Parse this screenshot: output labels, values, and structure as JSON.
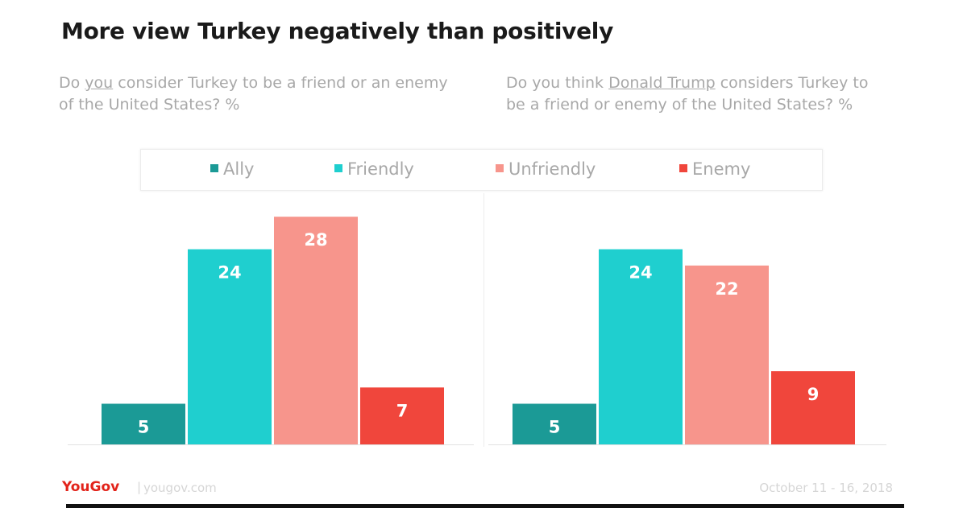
{
  "colors": {
    "ally": "#1b9a96",
    "friendly": "#1fcfcf",
    "unfriendly": "#f7958c",
    "enemy": "#f0463c"
  },
  "header": {
    "title": "More view Turkey negatively than positively"
  },
  "questions": {
    "left": {
      "before": "Do ",
      "underlined": "you",
      "after": " consider Turkey to be a friend or an enemy of the United States? %"
    },
    "right": {
      "before": "Do you think ",
      "underlined": "Donald Trump",
      "after": " considers Turkey to be a friend or enemy of the United States? %"
    }
  },
  "legend": [
    {
      "label": "Ally",
      "color": "#1b9a96"
    },
    {
      "label": "Friendly",
      "color": "#1fcfcf"
    },
    {
      "label": "Unfriendly",
      "color": "#f7958c"
    },
    {
      "label": "Enemy",
      "color": "#f0463c"
    }
  ],
  "chart_data": [
    {
      "type": "bar",
      "categories": [
        "Ally",
        "Friendly",
        "Unfriendly",
        "Enemy"
      ],
      "values": [
        5,
        24,
        28,
        7
      ],
      "colors": [
        "#1b9a96",
        "#1fcfcf",
        "#f7958c",
        "#f0463c"
      ],
      "data_labels": true,
      "ylim": [
        0,
        28
      ]
    },
    {
      "type": "bar",
      "categories": [
        "Ally",
        "Friendly",
        "Unfriendly",
        "Enemy"
      ],
      "values": [
        5,
        24,
        22,
        9
      ],
      "colors": [
        "#1b9a96",
        "#1fcfcf",
        "#f7958c",
        "#f0463c"
      ],
      "data_labels": true,
      "ylim": [
        0,
        28
      ]
    }
  ],
  "footer": {
    "brand": "YouGov",
    "separator": "|",
    "site": "yougov.com",
    "date": "October 11 - 16, 2018"
  }
}
